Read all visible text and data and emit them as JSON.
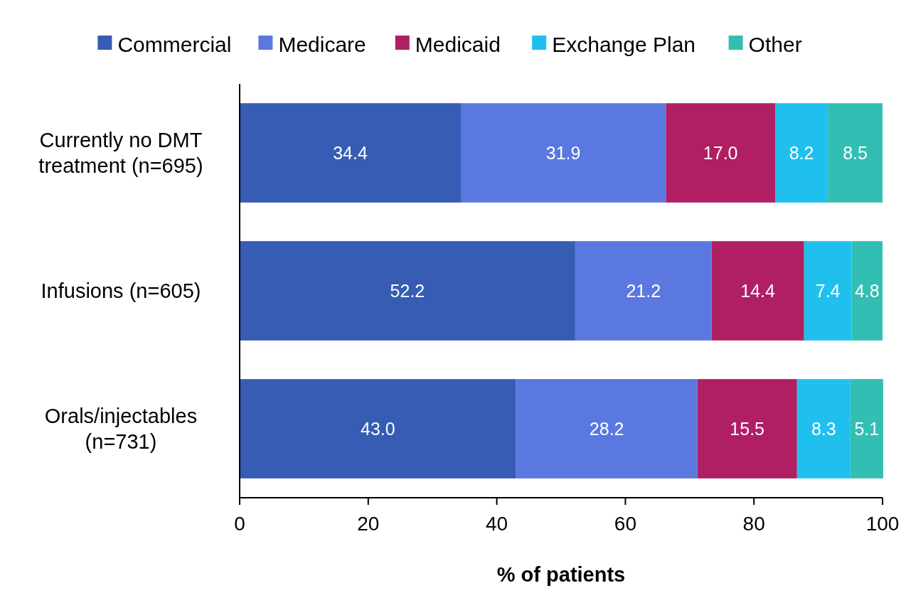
{
  "chart_data": {
    "type": "bar",
    "orientation": "horizontal",
    "stacked": true,
    "categories": [
      "Currently no DMT\ntreatment (n=695)",
      "Infusions (n=605)",
      "Orals/injectables\n(n=731)"
    ],
    "series": [
      {
        "name": "Commercial",
        "color": "#365cb4",
        "values": [
          34.4,
          52.2,
          43.0
        ],
        "value_labels": [
          "34.4",
          "52.2",
          "43.0"
        ]
      },
      {
        "name": "Medicare",
        "color": "#5b78e0",
        "values": [
          31.9,
          21.2,
          28.2
        ],
        "value_labels": [
          "31.9",
          "21.2",
          "28.2"
        ]
      },
      {
        "name": "Medicaid",
        "color": "#b01f63",
        "values": [
          17.0,
          14.4,
          15.5
        ],
        "value_labels": [
          "17.0",
          "14.4",
          "15.5"
        ]
      },
      {
        "name": "Exchange Plan",
        "color": "#20c0ee",
        "values": [
          8.2,
          7.4,
          8.3
        ],
        "value_labels": [
          "8.2",
          "7.4",
          "8.3"
        ]
      },
      {
        "name": "Other",
        "color": "#33beb4",
        "values": [
          8.5,
          4.8,
          5.1
        ],
        "value_labels": [
          "8.5",
          "4.8",
          "5.1"
        ]
      }
    ],
    "xlim": [
      0,
      100
    ],
    "xticks": [
      0,
      20,
      40,
      60,
      80,
      100
    ],
    "xlabel": "% of patients",
    "legend": "top",
    "grid": false
  }
}
